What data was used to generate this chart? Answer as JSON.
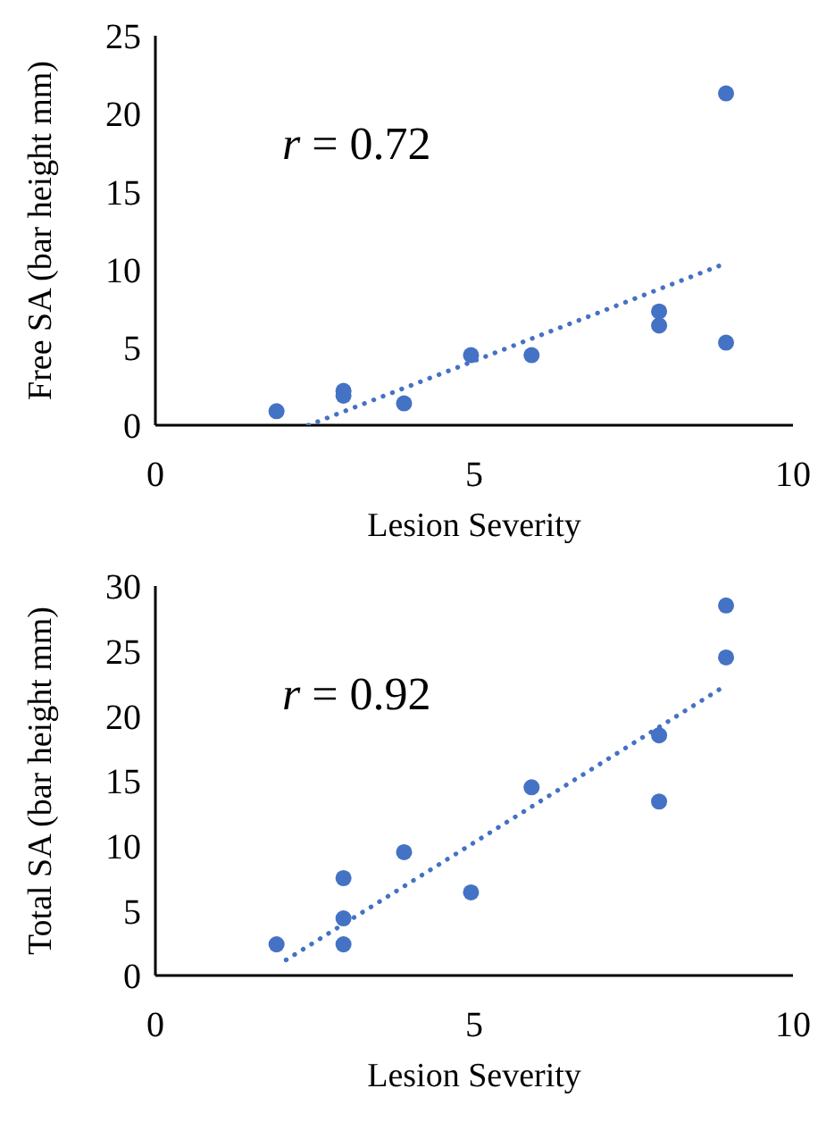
{
  "chart_data": [
    {
      "type": "scatter",
      "xlabel": "Lesion Severity",
      "ylabel": "Free SA (bar height mm)",
      "annotations": [
        "r = 0.72"
      ],
      "xlim": [
        0,
        10
      ],
      "xticks": [
        0,
        5,
        10
      ],
      "ylim": [
        0,
        25
      ],
      "yticks": [
        0,
        5,
        10,
        15,
        20,
        25
      ],
      "series": [
        {
          "type": "scatter",
          "color": "#4472c4",
          "marker": "circle",
          "x": [
            1.9,
            2.95,
            2.95,
            3.9,
            4.95,
            5.9,
            7.9,
            7.9,
            8.95,
            8.95
          ],
          "values": [
            0.9,
            2.2,
            1.9,
            1.4,
            4.5,
            4.5,
            7.3,
            6.4,
            5.3,
            21.3
          ]
        },
        {
          "type": "line",
          "color": "#4472c4",
          "marker": "none",
          "line_style": "dotted",
          "x": [
            2.4,
            8.95
          ],
          "values": [
            0,
            10.4
          ]
        }
      ]
    },
    {
      "type": "scatter",
      "xlabel": "Lesion Severity",
      "ylabel": "Total SA (bar height mm)",
      "annotations": [
        "r = 0.92"
      ],
      "xlim": [
        0,
        10
      ],
      "xticks": [
        0,
        5,
        10
      ],
      "ylim": [
        0,
        30
      ],
      "yticks": [
        0,
        5,
        10,
        15,
        20,
        25,
        30
      ],
      "series": [
        {
          "type": "scatter",
          "color": "#4472c4",
          "marker": "circle",
          "x": [
            1.9,
            2.95,
            2.95,
            2.95,
            3.9,
            4.95,
            5.9,
            7.9,
            7.9,
            8.95,
            8.95
          ],
          "values": [
            2.4,
            7.5,
            4.4,
            2.4,
            9.5,
            6.4,
            14.5,
            18.5,
            13.4,
            28.5,
            24.5
          ]
        },
        {
          "type": "line",
          "color": "#4472c4",
          "marker": "none",
          "line_style": "dotted",
          "x": [
            2.05,
            8.9
          ],
          "values": [
            1.2,
            22.2
          ]
        }
      ]
    }
  ]
}
